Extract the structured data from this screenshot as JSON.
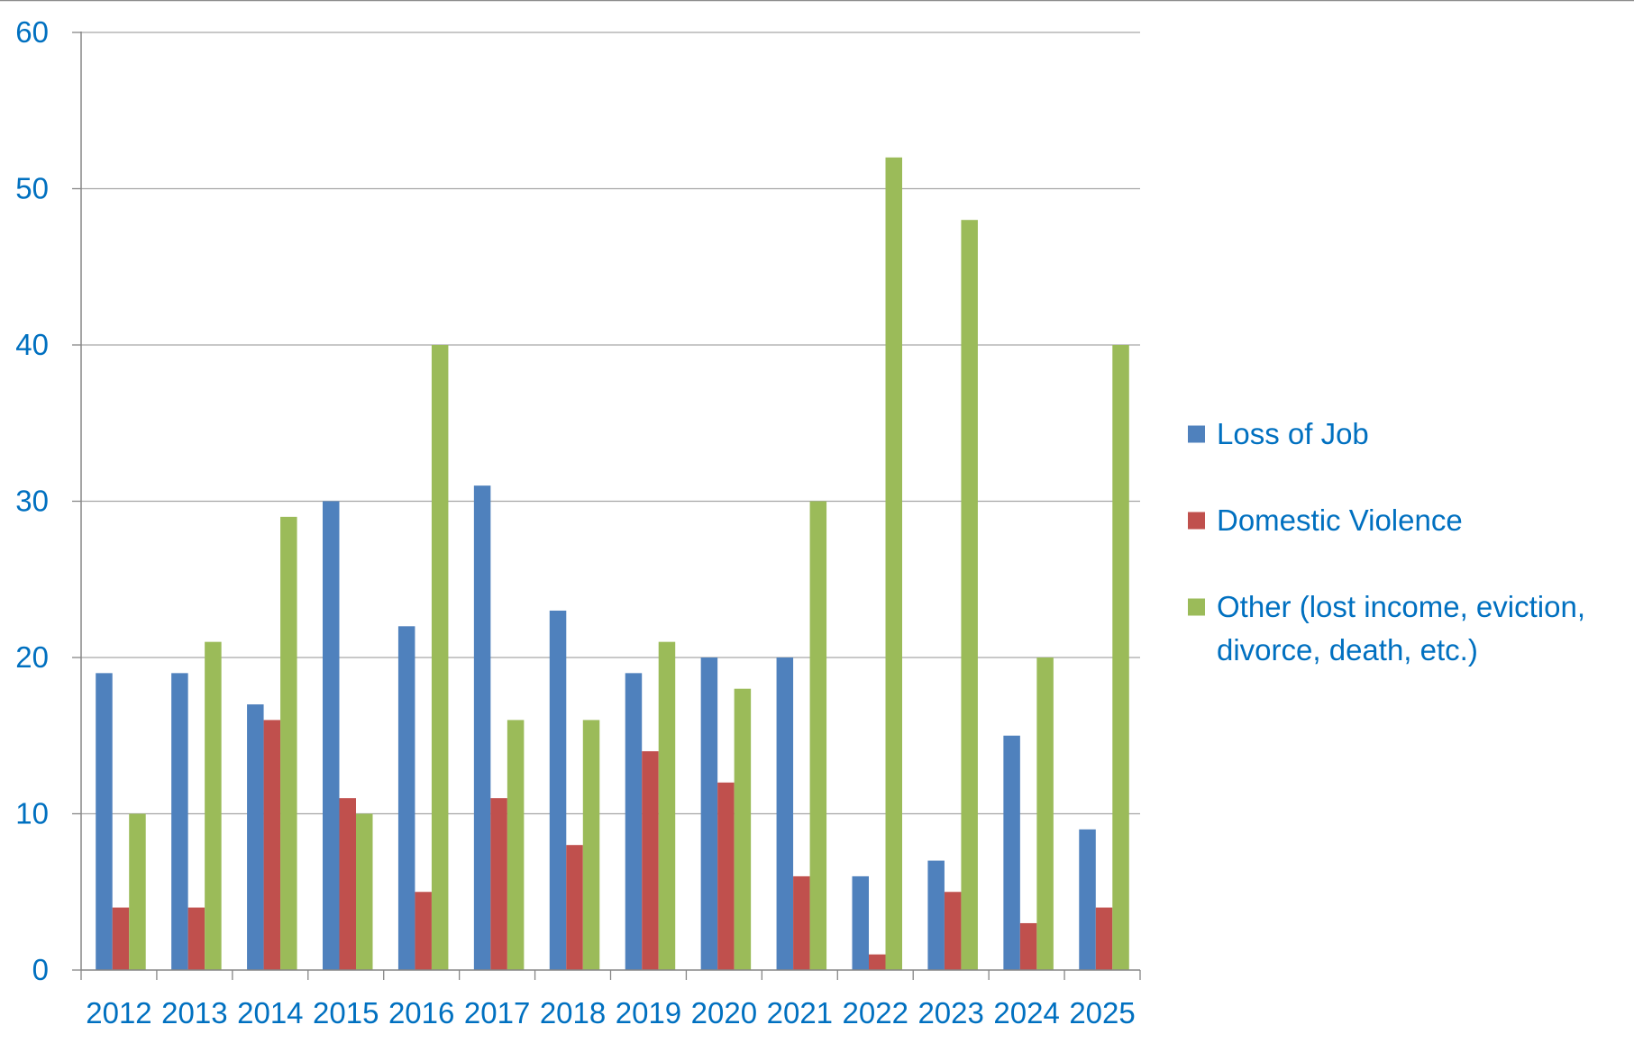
{
  "chart_data": {
    "type": "bar",
    "categories": [
      "2012",
      "2013",
      "2014",
      "2015",
      "2016",
      "2017",
      "2018",
      "2019",
      "2020",
      "2021",
      "2022",
      "2023",
      "2024",
      "2025"
    ],
    "series": [
      {
        "name": "Loss of Job",
        "color": "#4F81BD",
        "values": [
          19,
          19,
          17,
          30,
          22,
          31,
          23,
          19,
          20,
          20,
          6,
          7,
          15,
          9
        ]
      },
      {
        "name": "Domestic Violence",
        "color": "#C0504D",
        "values": [
          4,
          4,
          16,
          11,
          5,
          11,
          8,
          14,
          12,
          6,
          1,
          5,
          3,
          4
        ]
      },
      {
        "name": "Other (lost income, eviction, divorce, death, etc.)",
        "name_lines": [
          "Other (lost income, eviction,",
          "divorce, death, etc.)"
        ],
        "color": "#9BBB59",
        "values": [
          10,
          21,
          29,
          10,
          40,
          16,
          16,
          21,
          18,
          30,
          52,
          48,
          20,
          40
        ]
      }
    ],
    "yticks": [
      "0",
      "10",
      "20",
      "30",
      "40",
      "50",
      "60"
    ],
    "ylim": [
      0,
      60
    ],
    "grid": true,
    "legend_position": "right",
    "label_color": "#0070C0",
    "gridline_color": "#A6A6A6",
    "axis_color": "#868686"
  }
}
